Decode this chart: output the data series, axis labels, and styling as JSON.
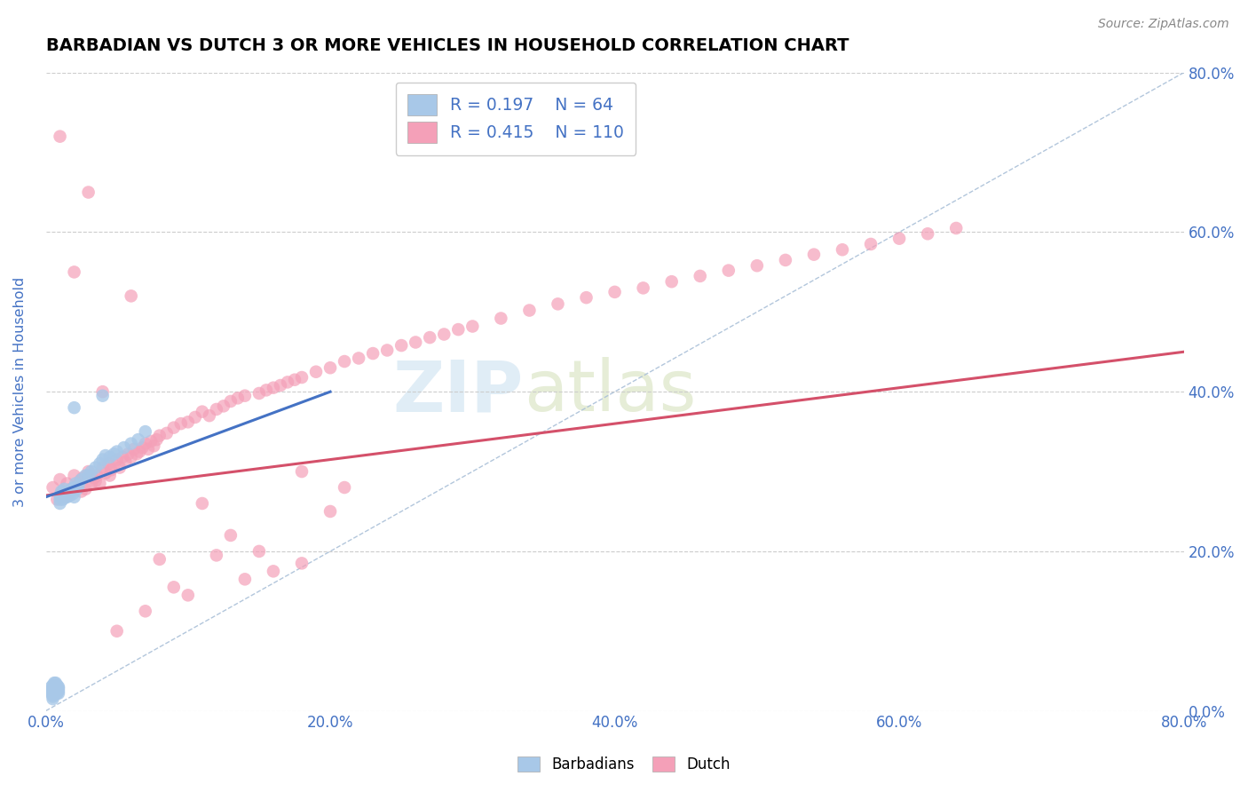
{
  "title": "BARBADIAN VS DUTCH 3 OR MORE VEHICLES IN HOUSEHOLD CORRELATION CHART",
  "source_text": "Source: ZipAtlas.com",
  "ylabel": "3 or more Vehicles in Household",
  "xlim": [
    0.0,
    0.8
  ],
  "ylim": [
    0.0,
    0.8
  ],
  "xticks": [
    0.0,
    0.2,
    0.4,
    0.6,
    0.8
  ],
  "yticks": [
    0.0,
    0.2,
    0.4,
    0.6,
    0.8
  ],
  "xtick_labels": [
    "0.0%",
    "20.0%",
    "40.0%",
    "60.0%",
    "80.0%"
  ],
  "ytick_labels": [
    "0.0%",
    "20.0%",
    "40.0%",
    "60.0%",
    "80.0%"
  ],
  "barbadian_color": "#a8c8e8",
  "dutch_color": "#f4a0b8",
  "barbadian_trend_color": "#4472c4",
  "dutch_trend_color": "#d4506a",
  "diagonal_color": "#aac0d8",
  "legend_r_barbadian": "R = 0.197",
  "legend_n_barbadian": "N = 64",
  "legend_r_dutch": "R = 0.415",
  "legend_n_dutch": "N = 110",
  "legend_label_barbadian": "Barbadians",
  "legend_label_dutch": "Dutch",
  "title_fontsize": 14,
  "axis_label_color": "#4472c4",
  "tick_color": "#4472c4",
  "watermark_zip": "ZIP",
  "watermark_atlas": "atlas",
  "barbadian_x": [
    0.003,
    0.004,
    0.004,
    0.005,
    0.005,
    0.005,
    0.005,
    0.005,
    0.005,
    0.006,
    0.006,
    0.006,
    0.006,
    0.007,
    0.007,
    0.007,
    0.007,
    0.007,
    0.008,
    0.008,
    0.008,
    0.008,
    0.009,
    0.009,
    0.009,
    0.009,
    0.01,
    0.01,
    0.01,
    0.011,
    0.011,
    0.012,
    0.012,
    0.013,
    0.013,
    0.014,
    0.015,
    0.015,
    0.016,
    0.017,
    0.018,
    0.019,
    0.02,
    0.02,
    0.021,
    0.022,
    0.023,
    0.025,
    0.028,
    0.03,
    0.032,
    0.035,
    0.038,
    0.04,
    0.042,
    0.045,
    0.048,
    0.05,
    0.055,
    0.06,
    0.065,
    0.07,
    0.02,
    0.04
  ],
  "barbadian_y": [
    0.025,
    0.03,
    0.022,
    0.028,
    0.032,
    0.015,
    0.02,
    0.018,
    0.025,
    0.03,
    0.022,
    0.028,
    0.035,
    0.025,
    0.03,
    0.022,
    0.028,
    0.035,
    0.025,
    0.03,
    0.022,
    0.032,
    0.025,
    0.03,
    0.022,
    0.028,
    0.265,
    0.27,
    0.26,
    0.275,
    0.268,
    0.272,
    0.265,
    0.278,
    0.27,
    0.268,
    0.272,
    0.268,
    0.275,
    0.27,
    0.278,
    0.272,
    0.28,
    0.268,
    0.285,
    0.278,
    0.282,
    0.29,
    0.295,
    0.295,
    0.3,
    0.305,
    0.31,
    0.315,
    0.32,
    0.318,
    0.322,
    0.325,
    0.33,
    0.335,
    0.34,
    0.35,
    0.38,
    0.395
  ],
  "dutch_x": [
    0.005,
    0.008,
    0.01,
    0.012,
    0.013,
    0.015,
    0.016,
    0.018,
    0.02,
    0.022,
    0.024,
    0.025,
    0.026,
    0.028,
    0.03,
    0.032,
    0.034,
    0.035,
    0.036,
    0.038,
    0.04,
    0.042,
    0.044,
    0.045,
    0.046,
    0.048,
    0.05,
    0.052,
    0.054,
    0.056,
    0.058,
    0.06,
    0.062,
    0.064,
    0.066,
    0.068,
    0.07,
    0.072,
    0.074,
    0.076,
    0.078,
    0.08,
    0.085,
    0.09,
    0.095,
    0.1,
    0.105,
    0.11,
    0.115,
    0.12,
    0.125,
    0.13,
    0.135,
    0.14,
    0.15,
    0.155,
    0.16,
    0.165,
    0.17,
    0.175,
    0.18,
    0.19,
    0.2,
    0.21,
    0.22,
    0.23,
    0.24,
    0.25,
    0.26,
    0.27,
    0.28,
    0.29,
    0.3,
    0.32,
    0.34,
    0.36,
    0.38,
    0.4,
    0.42,
    0.44,
    0.46,
    0.48,
    0.5,
    0.52,
    0.54,
    0.56,
    0.58,
    0.6,
    0.62,
    0.64,
    0.01,
    0.02,
    0.03,
    0.04,
    0.06,
    0.08,
    0.1,
    0.12,
    0.14,
    0.16,
    0.18,
    0.2,
    0.05,
    0.07,
    0.09,
    0.11,
    0.13,
    0.15,
    0.18,
    0.21
  ],
  "dutch_y": [
    0.28,
    0.265,
    0.29,
    0.275,
    0.268,
    0.285,
    0.272,
    0.278,
    0.295,
    0.282,
    0.288,
    0.275,
    0.292,
    0.278,
    0.3,
    0.285,
    0.292,
    0.288,
    0.295,
    0.285,
    0.305,
    0.298,
    0.31,
    0.295,
    0.302,
    0.308,
    0.315,
    0.305,
    0.318,
    0.312,
    0.322,
    0.318,
    0.328,
    0.322,
    0.325,
    0.33,
    0.335,
    0.328,
    0.338,
    0.332,
    0.34,
    0.345,
    0.348,
    0.355,
    0.36,
    0.362,
    0.368,
    0.375,
    0.37,
    0.378,
    0.382,
    0.388,
    0.392,
    0.395,
    0.398,
    0.402,
    0.405,
    0.408,
    0.412,
    0.415,
    0.418,
    0.425,
    0.43,
    0.438,
    0.442,
    0.448,
    0.452,
    0.458,
    0.462,
    0.468,
    0.472,
    0.478,
    0.482,
    0.492,
    0.502,
    0.51,
    0.518,
    0.525,
    0.53,
    0.538,
    0.545,
    0.552,
    0.558,
    0.565,
    0.572,
    0.578,
    0.585,
    0.592,
    0.598,
    0.605,
    0.72,
    0.55,
    0.65,
    0.4,
    0.52,
    0.19,
    0.145,
    0.195,
    0.165,
    0.175,
    0.185,
    0.25,
    0.1,
    0.125,
    0.155,
    0.26,
    0.22,
    0.2,
    0.3,
    0.28
  ]
}
